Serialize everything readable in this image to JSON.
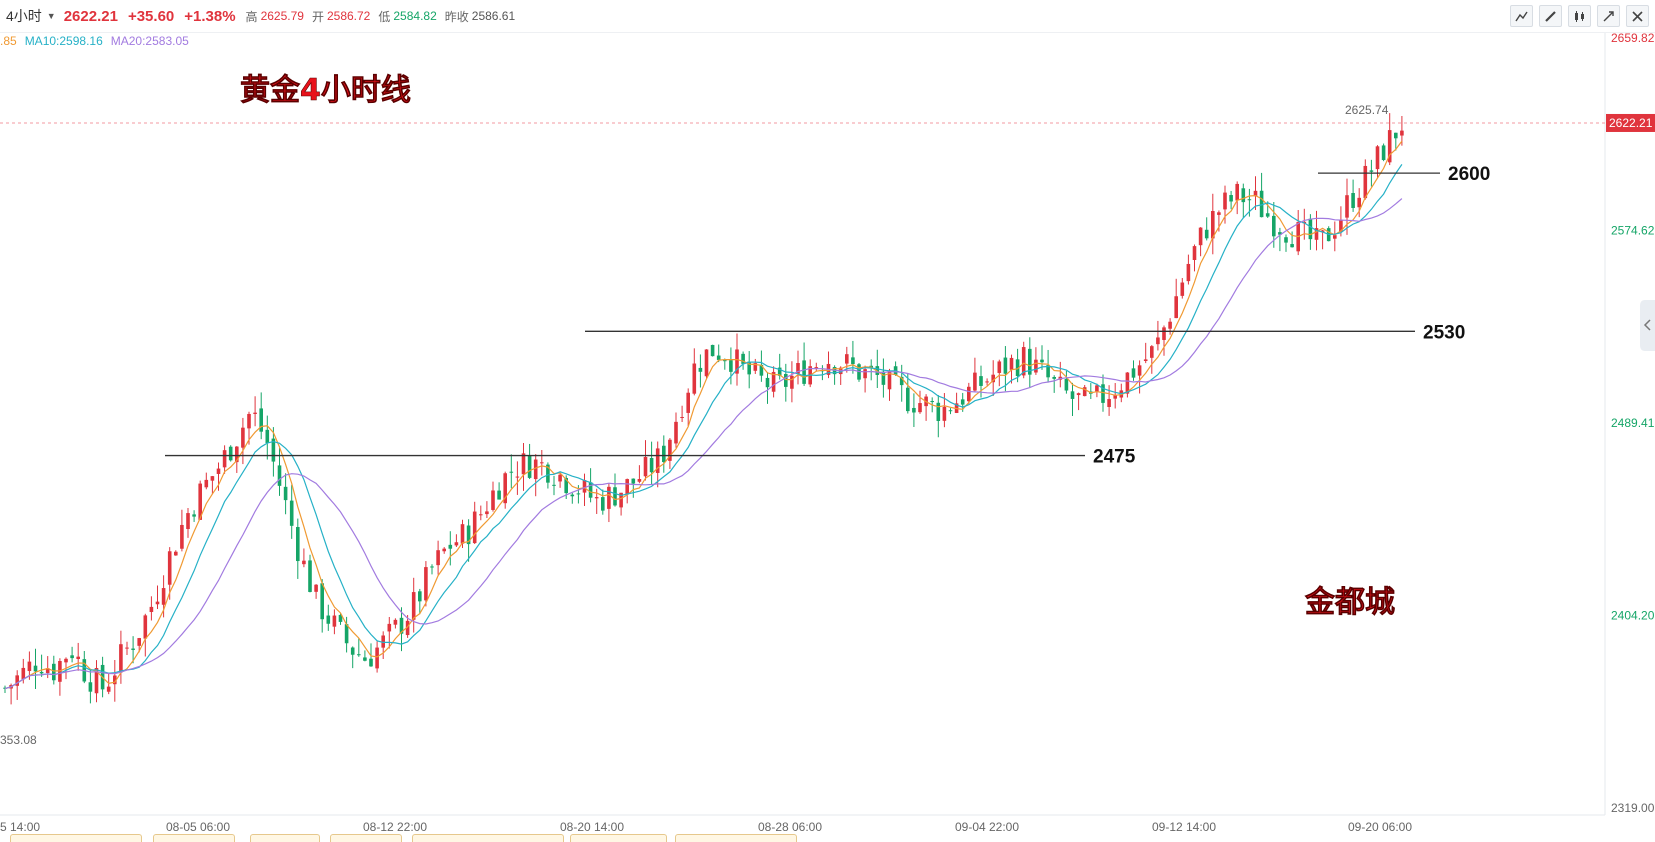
{
  "header": {
    "interval": "4小时",
    "price": "2622.21",
    "change": "+35.60",
    "change_pct": "+1.38%",
    "high_label": "高",
    "high": "2625.79",
    "open_label": "开",
    "open": "2586.72",
    "low_label": "低",
    "low": "2584.82",
    "prev_close_label": "昨收",
    "prev_close": "2586.61"
  },
  "ma_legend": {
    "ma5_partial": ".85",
    "ma10": "MA10:2598.16",
    "ma20": "MA20:2583.05"
  },
  "toolbar_icons": [
    "line-style-icon",
    "draw-pencil-icon",
    "candle-type-icon",
    "expand-icon",
    "close-icon"
  ],
  "colors": {
    "up": "#e0343d",
    "down": "#15a567",
    "ma5": "#f09a33",
    "ma10": "#26b1c7",
    "ma20": "#a27be0",
    "annotation": "#e8121b"
  },
  "chart_data": {
    "type": "candlestick",
    "title": "黄金4小时线",
    "watermark": "金都城",
    "y_axis": {
      "ticks": [
        "2659.82",
        "2574.62",
        "2489.41",
        "2404.20",
        "2319.00"
      ],
      "range": [
        2319.0,
        2659.82
      ],
      "current_price_tag": "2622.21"
    },
    "x_axis": {
      "ticks": [
        "5 14:00",
        "08-05 06:00",
        "08-12 22:00",
        "08-20 14:00",
        "08-28 06:00",
        "09-04 22:00",
        "09-12 14:00",
        "09-20 06:00"
      ]
    },
    "annotations": {
      "max_label": "2625.74",
      "min_label": "353.08",
      "levels": [
        {
          "label": "2600",
          "value": 2600
        },
        {
          "label": "2530",
          "value": 2530
        },
        {
          "label": "2475",
          "value": 2475
        }
      ]
    },
    "series_close_path": [
      2372,
      2378,
      2385,
      2380,
      2390,
      2378,
      2372,
      2385,
      2395,
      2410,
      2430,
      2448,
      2460,
      2470,
      2482,
      2495,
      2480,
      2455,
      2430,
      2410,
      2400,
      2390,
      2385,
      2392,
      2400,
      2410,
      2425,
      2435,
      2440,
      2450,
      2462,
      2470,
      2472,
      2470,
      2465,
      2460,
      2455,
      2458,
      2462,
      2468,
      2475,
      2495,
      2515,
      2522,
      2520,
      2512,
      2508,
      2505,
      2510,
      2515,
      2518,
      2516,
      2512,
      2510,
      2505,
      2500,
      2498,
      2495,
      2500,
      2505,
      2510,
      2515,
      2518,
      2512,
      2505,
      2500,
      2498,
      2502,
      2508,
      2515,
      2522,
      2540,
      2560,
      2575,
      2585,
      2590,
      2588,
      2580,
      2575,
      2572,
      2568,
      2578,
      2590,
      2600,
      2612,
      2622
    ]
  }
}
